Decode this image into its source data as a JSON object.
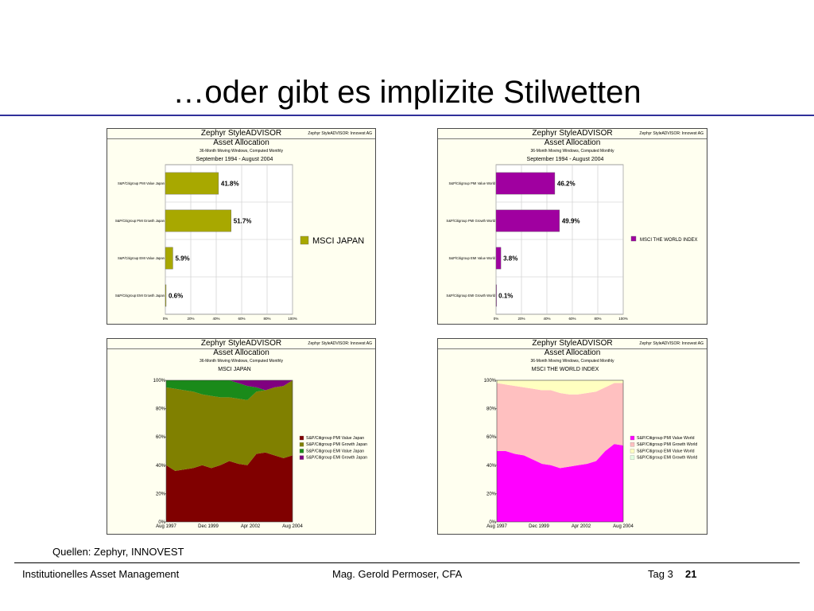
{
  "slide": {
    "title": "…oder gibt es implizite Stilwetten",
    "source": "Quellen: Zephyr, INNOVEST",
    "footer_left": "Institutionelles Asset Management",
    "footer_center": "Mag. Gerold Permoser, CFA",
    "footer_day": "Tag 3",
    "footer_page": "21"
  },
  "panels": [
    {
      "brand": "Zephyr StyleADVISOR",
      "tag": "Zephyr StyleADVISOR: Innovest AG",
      "title": "Asset Allocation",
      "subtitle": "36-Month Moving Windows, Computed Monthly",
      "period": "September 1994 - August 2004"
    },
    {
      "brand": "Zephyr StyleADVISOR",
      "tag": "Zephyr StyleADVISOR: Innovest AG",
      "title": "Asset Allocation",
      "subtitle": "36-Month Moving Windows, Computed Monthly",
      "period": "September 1994 - August 2004"
    },
    {
      "brand": "Zephyr StyleADVISOR",
      "tag": "Zephyr StyleADVISOR: Innovest AG",
      "title": "Asset Allocation",
      "subtitle": "36-Month Moving Windows, Computed Monthly",
      "period": "MSCI JAPAN"
    },
    {
      "brand": "Zephyr StyleADVISOR",
      "tag": "Zephyr StyleADVISOR: Innovest AG",
      "title": "Asset Allocation",
      "subtitle": "36-Month Moving Windows, Computed Monthly",
      "period": "MSCI THE WORLD INDEX"
    }
  ],
  "chart_data": [
    {
      "type": "bar",
      "orientation": "horizontal",
      "categories": [
        "S&P/Citigroup PMI Value Japan",
        "S&P/Citigroup PMI Growth Japan",
        "S&P/Citigroup EMI Value Japan",
        "S&P/Citigroup EMI Growth Japan"
      ],
      "values": [
        41.8,
        51.7,
        5.9,
        0.6
      ],
      "value_labels": [
        "41.8%",
        "51.7%",
        "5.9%",
        "0.6%"
      ],
      "xlim": [
        0,
        100
      ],
      "x_ticks": [
        "0%",
        "20%",
        "40%",
        "60%",
        "80%",
        "100%"
      ],
      "legend": {
        "name": "MSCI JAPAN",
        "color": "#a8a800",
        "position": "right"
      },
      "grid": true
    },
    {
      "type": "bar",
      "orientation": "horizontal",
      "categories": [
        "S&P/Citigroup PMI Value World",
        "S&P/Citigroup PMI Growth World",
        "S&P/Citigroup EMI Value World",
        "S&P/Citigroup EMI Growth World"
      ],
      "values": [
        46.2,
        49.9,
        3.8,
        0.1
      ],
      "value_labels": [
        "46.2%",
        "49.9%",
        "3.8%",
        "0.1%"
      ],
      "xlim": [
        0,
        100
      ],
      "x_ticks": [
        "0%",
        "20%",
        "40%",
        "60%",
        "80%",
        "100%"
      ],
      "legend": {
        "name": "MSCI THE WORLD INDEX",
        "color": "#a000a0",
        "position": "right"
      },
      "grid": true
    },
    {
      "type": "area",
      "stacked": true,
      "x": [
        "Aug 1997",
        "Feb 1998",
        "Aug 1998",
        "Feb 1999",
        "Aug 1999",
        "Feb 2000",
        "Aug 2000",
        "Feb 2001",
        "Aug 2001",
        "Feb 2002",
        "Aug 2002",
        "Feb 2003",
        "Aug 2003",
        "Feb 2004",
        "Aug 2004"
      ],
      "x_ticks": [
        "Aug 1997",
        "Dec 1999",
        "Apr 2002",
        "Aug 2004"
      ],
      "y_ticks": [
        "0%",
        "20%",
        "40%",
        "60%",
        "80%",
        "100%"
      ],
      "ylim": [
        0,
        100
      ],
      "series": [
        {
          "name": "S&P/Citigroup PMI Value Japan",
          "color": "#800000",
          "values": [
            40,
            36,
            37,
            38,
            40,
            38,
            40,
            43,
            41,
            40,
            48,
            49,
            47,
            45,
            47
          ]
        },
        {
          "name": "S&P/Citigroup PMI Growth Japan",
          "color": "#808000",
          "values": [
            55,
            58,
            56,
            54,
            50,
            51,
            48,
            45,
            46,
            46,
            44,
            44,
            48,
            51,
            53
          ]
        },
        {
          "name": "S&P/Citigroup EMI Value Japan",
          "color": "#1a8a1a",
          "values": [
            5,
            6,
            7,
            8,
            10,
            11,
            12,
            12,
            11,
            10,
            3,
            0,
            0,
            0,
            0
          ]
        },
        {
          "name": "S&P/Citigroup EMI Growth Japan",
          "color": "#800080",
          "values": [
            0,
            0,
            0,
            0,
            0,
            0,
            0,
            0,
            2,
            4,
            5,
            7,
            5,
            4,
            0
          ]
        }
      ],
      "legend_position": "right"
    },
    {
      "type": "area",
      "stacked": true,
      "x": [
        "Aug 1997",
        "Feb 1998",
        "Aug 1998",
        "Feb 1999",
        "Aug 1999",
        "Feb 2000",
        "Aug 2000",
        "Feb 2001",
        "Aug 2001",
        "Feb 2002",
        "Aug 2002",
        "Feb 2003",
        "Aug 2003",
        "Feb 2004",
        "Aug 2004"
      ],
      "x_ticks": [
        "Aug 1997",
        "Dec 1999",
        "Apr 2002",
        "Aug 2004"
      ],
      "y_ticks": [
        "0%",
        "20%",
        "40%",
        "60%",
        "80%",
        "100%"
      ],
      "ylim": [
        0,
        100
      ],
      "series": [
        {
          "name": "S&P/Citigroup PMI Value World",
          "color": "#ff00ff",
          "values": [
            50,
            50,
            48,
            47,
            44,
            41,
            40,
            38,
            39,
            40,
            41,
            43,
            50,
            55,
            54
          ]
        },
        {
          "name": "S&P/Citigroup PMI Growth World",
          "color": "#ffc0c0",
          "values": [
            48,
            47,
            48,
            48,
            50,
            52,
            53,
            53,
            51,
            50,
            50,
            49,
            45,
            43,
            44
          ]
        },
        {
          "name": "S&P/Citigroup EMI Value World",
          "color": "#ffffc0",
          "values": [
            2,
            3,
            4,
            5,
            6,
            7,
            7,
            9,
            10,
            10,
            9,
            8,
            5,
            2,
            2
          ]
        },
        {
          "name": "S&P/Citigroup EMI Growth World",
          "color": "#e0ffe0",
          "values": [
            0,
            0,
            0,
            0,
            0,
            0,
            0,
            0,
            0,
            0,
            0,
            0,
            0,
            0,
            0
          ]
        }
      ],
      "legend_position": "right"
    }
  ]
}
